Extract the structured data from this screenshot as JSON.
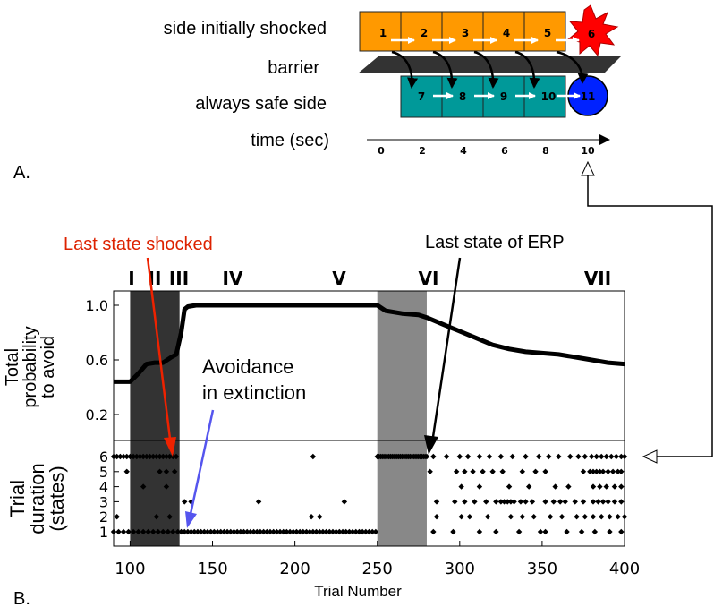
{
  "panel_a": {
    "panel_label": "A.",
    "row_labels": {
      "shocked": "side initially shocked",
      "barrier": "barrier",
      "safe": "always safe side",
      "time": "time (sec)"
    },
    "shocked_states": [
      "1",
      "2",
      "3",
      "4",
      "5"
    ],
    "shock_state": "6",
    "safe_states": [
      "7",
      "8",
      "9",
      "10"
    ],
    "safe_end_state": "11",
    "time_ticks": [
      "0",
      "2",
      "4",
      "6",
      "8",
      "10"
    ],
    "colors": {
      "shocked": "#ff9900",
      "safe": "#009999",
      "shock_star": "#ff0000",
      "safe_end": "#0022ff",
      "barrier": "#333333"
    }
  },
  "panel_b": {
    "panel_label": "B.",
    "annotations": {
      "last_shocked": "Last state shocked",
      "last_erp": "Last state of ERP",
      "avoidance_1": "Avoidance",
      "avoidance_2": "in extinction"
    },
    "annotation_colors": {
      "last_shocked": "#dd2200",
      "avoidance": "#5555ee",
      "last_erp": "#000000"
    },
    "phases": [
      "I",
      "II",
      "III",
      "IV",
      "V",
      "VI",
      "VII"
    ]
  },
  "chart_data": [
    {
      "type": "line",
      "ylabel": "Total probability to avoid",
      "ylabel_lines": [
        "Total",
        "probability",
        "to avoid"
      ],
      "xlim": [
        90,
        400
      ],
      "ylim": [
        0,
        1.1
      ],
      "yticks": [
        0.2,
        0.6,
        1.0
      ],
      "ytick_labels": [
        "0.2",
        "0.6",
        "1.0"
      ],
      "shaded_regions": [
        {
          "x": [
            100,
            130
          ],
          "color": "#333333"
        },
        {
          "x": [
            250,
            280
          ],
          "color": "#888888"
        }
      ],
      "series": [
        {
          "x": [
            90,
            100,
            105,
            110,
            115,
            120,
            125,
            128,
            131,
            133,
            135,
            140,
            150,
            170,
            200,
            230,
            250,
            255,
            265,
            275,
            280,
            290,
            300,
            310,
            320,
            330,
            340,
            350,
            360,
            370,
            380,
            390,
            400
          ],
          "y": [
            0.44,
            0.44,
            0.5,
            0.57,
            0.58,
            0.58,
            0.62,
            0.64,
            0.8,
            0.97,
            0.99,
            1.0,
            1.0,
            1.0,
            1.0,
            1.0,
            1.0,
            0.96,
            0.94,
            0.93,
            0.91,
            0.86,
            0.81,
            0.76,
            0.71,
            0.68,
            0.66,
            0.65,
            0.64,
            0.62,
            0.6,
            0.58,
            0.57
          ]
        }
      ]
    },
    {
      "type": "scatter",
      "xlabel": "Trial Number",
      "ylabel": "Trial duration (states)",
      "ylabel_lines": [
        "Trial",
        "duration",
        "(states)"
      ],
      "xlim": [
        90,
        400
      ],
      "ylim": [
        0.5,
        6.5
      ],
      "xticks": [
        100,
        150,
        200,
        250,
        300,
        350,
        400
      ],
      "yticks": [
        1,
        2,
        3,
        4,
        5,
        6
      ],
      "points_by_duration": {
        "6": [
          90,
          92,
          94,
          96,
          98,
          100,
          102,
          104,
          106,
          108,
          110,
          112,
          114,
          116,
          118,
          120,
          122,
          124,
          126,
          128,
          211,
          250,
          251,
          252,
          253,
          254,
          255,
          256,
          257,
          258,
          259,
          260,
          261,
          262,
          263,
          264,
          265,
          266,
          267,
          268,
          269,
          270,
          271,
          272,
          273,
          274,
          275,
          276,
          277,
          278,
          279,
          280,
          284,
          292,
          300,
          305,
          312,
          318,
          325,
          332,
          340,
          348,
          354,
          360,
          367,
          372,
          376,
          380,
          383,
          386,
          389,
          392,
          395,
          398,
          400
        ],
        "5": [
          98,
          118,
          122,
          127,
          282,
          298,
          303,
          308,
          314,
          320,
          326,
          338,
          346,
          352,
          375,
          379,
          381,
          383,
          385,
          387,
          390,
          393,
          396,
          398
        ],
        "4": [
          108,
          122,
          301,
          312,
          330,
          342,
          358,
          366,
          381,
          385,
          389,
          394,
          398
        ],
        "3": [
          133,
          137,
          178,
          230,
          286,
          297,
          303,
          309,
          316,
          322,
          325,
          327,
          329,
          331,
          333,
          337,
          340,
          344,
          352,
          357,
          361,
          364,
          370,
          375,
          381,
          384,
          387,
          390,
          394,
          398
        ],
        "2": [
          92,
          116,
          124,
          210,
          215,
          286,
          301,
          306,
          317,
          331,
          338,
          345,
          355,
          362,
          371,
          376,
          381,
          386,
          391,
          396,
          400
        ],
        "1": [
          90,
          93,
          96,
          99,
          102,
          105,
          108,
          111,
          114,
          117,
          120,
          123,
          126,
          129,
          131,
          133,
          135,
          137,
          139,
          141,
          143,
          145,
          147,
          149,
          151,
          153,
          155,
          157,
          159,
          161,
          163,
          165,
          167,
          169,
          171,
          173,
          175,
          177,
          179,
          181,
          183,
          185,
          187,
          189,
          191,
          193,
          195,
          197,
          199,
          201,
          203,
          205,
          207,
          209,
          211,
          213,
          215,
          217,
          219,
          221,
          223,
          225,
          227,
          229,
          231,
          233,
          235,
          237,
          239,
          241,
          243,
          245,
          247,
          249,
          284,
          296,
          312,
          322,
          336,
          349,
          352,
          365,
          374,
          382,
          391,
          398
        ]
      }
    }
  ]
}
